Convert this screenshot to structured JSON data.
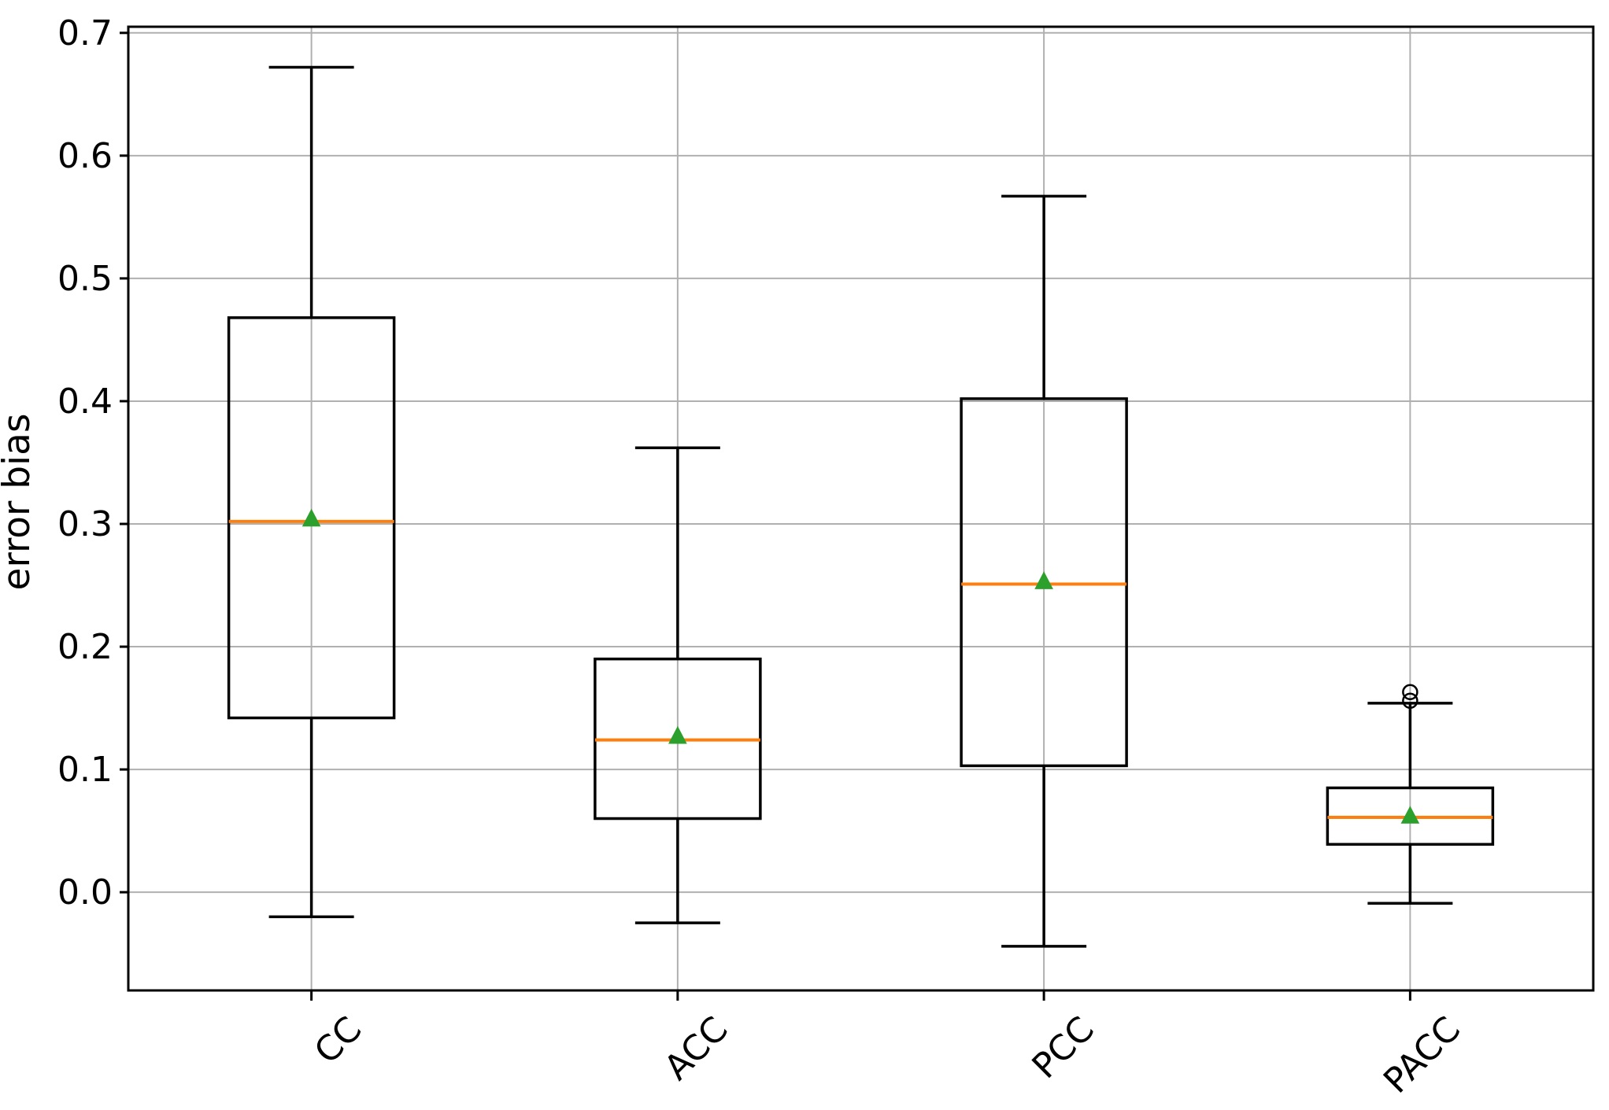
{
  "figure": {
    "background": "#ffffff",
    "title": ""
  },
  "chart_data": {
    "type": "boxplot",
    "title": "",
    "xlabel": "",
    "ylabel": "error bias",
    "categories": [
      "CC",
      "ACC",
      "PCC",
      "PACC"
    ],
    "xtick_rotation_deg": 45,
    "ylim": [
      -0.08,
      0.705
    ],
    "yticks": [
      0.0,
      0.1,
      0.2,
      0.3,
      0.4,
      0.5,
      0.6,
      0.7
    ],
    "ytick_labels": [
      "0.0",
      "0.1",
      "0.2",
      "0.3",
      "0.4",
      "0.5",
      "0.6",
      "0.7"
    ],
    "grid": true,
    "legend": false,
    "series": [
      {
        "name": "CC",
        "whislo": -0.02,
        "q1": 0.142,
        "med": 0.302,
        "mean": 0.304,
        "q3": 0.468,
        "whishi": 0.672,
        "fliers": []
      },
      {
        "name": "ACC",
        "whislo": -0.025,
        "q1": 0.06,
        "med": 0.124,
        "mean": 0.127,
        "q3": 0.19,
        "whishi": 0.362,
        "fliers": []
      },
      {
        "name": "PCC",
        "whislo": -0.044,
        "q1": 0.103,
        "med": 0.251,
        "mean": 0.253,
        "q3": 0.402,
        "whishi": 0.567,
        "fliers": []
      },
      {
        "name": "PACC",
        "whislo": -0.009,
        "q1": 0.039,
        "med": 0.061,
        "mean": 0.062,
        "q3": 0.085,
        "whishi": 0.154,
        "fliers": [
          0.156,
          0.163
        ]
      }
    ],
    "colors": {
      "median": "#ff7f0e",
      "mean_marker": "#2ca02c",
      "box_line": "#000000",
      "whisker": "#000000",
      "flier_edge": "#000000",
      "grid": "#b0b0b0",
      "spine": "#000000",
      "text": "#000000",
      "plot_background": "#ffffff"
    },
    "marker_styles": {
      "mean": "triangle-up",
      "flier": "open-circle"
    }
  }
}
